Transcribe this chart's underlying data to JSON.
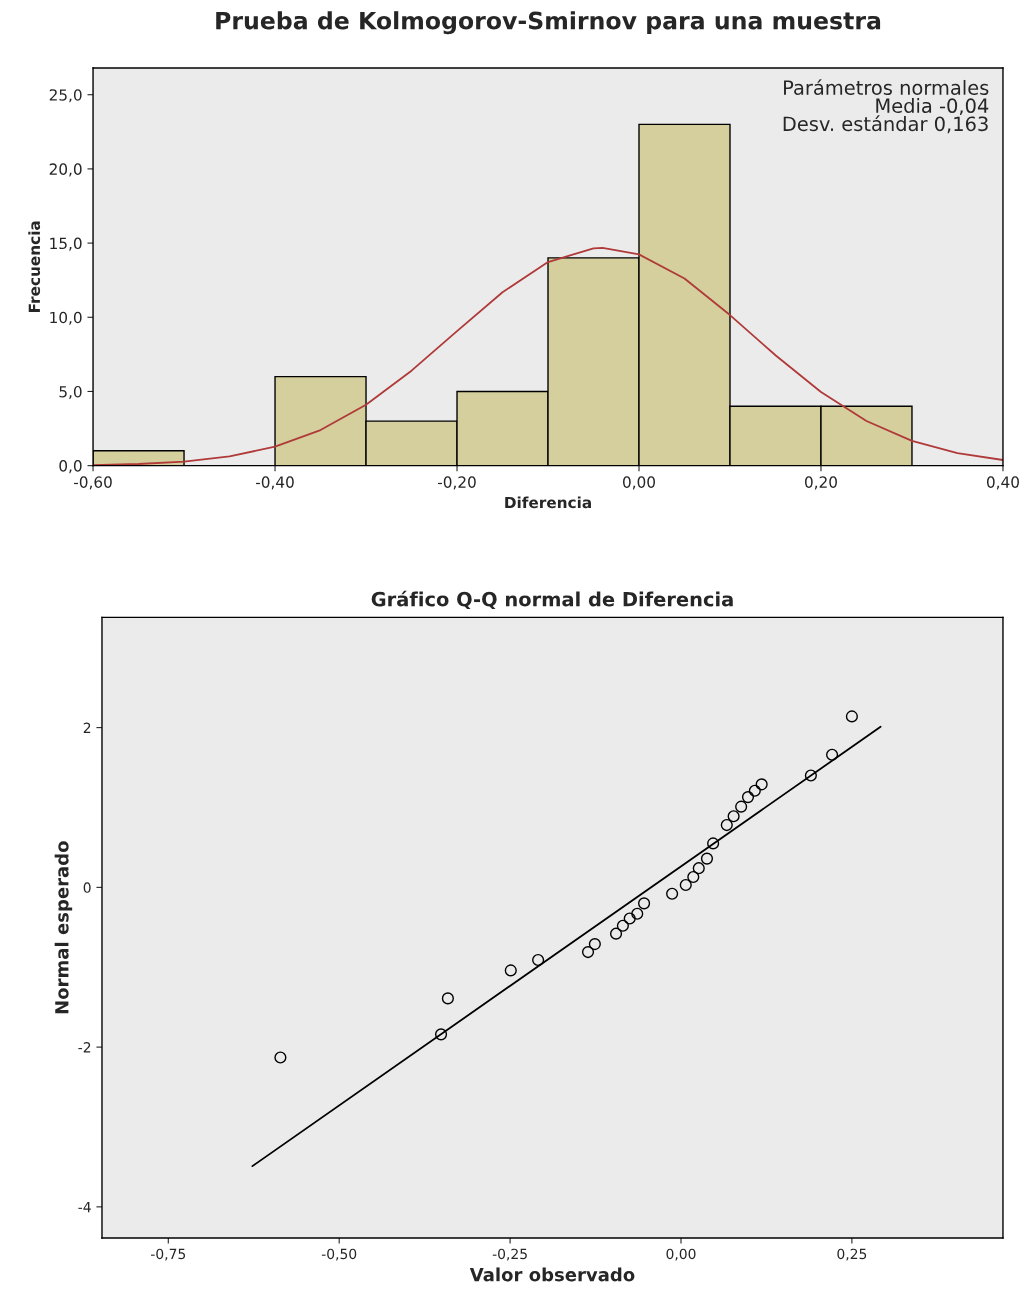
{
  "chart_data": [
    {
      "type": "histogram",
      "title": "Prueba de Kolmogorov-Smirnov para una muestra",
      "xlabel": "Diferencia",
      "ylabel": "Frecuencia",
      "bins": [
        -0.6,
        -0.5,
        -0.4,
        -0.3,
        -0.2,
        -0.1,
        0.0,
        0.1,
        0.2,
        0.3
      ],
      "series": [
        {
          "color": "#d4cf9c",
          "values": [
            1,
            0,
            6,
            3,
            5,
            14,
            23,
            4,
            4
          ]
        },
        {
          "type": "line",
          "color": "#b03a3a",
          "x": [
            -0.6,
            -0.55,
            -0.5,
            -0.45,
            -0.4,
            -0.35,
            -0.3,
            -0.25,
            -0.2,
            -0.15,
            -0.1,
            -0.05,
            -0.04,
            0.0,
            0.05,
            0.1,
            0.15,
            0.2,
            0.25,
            0.3,
            0.35,
            0.4
          ],
          "values": [
            0.04,
            0.11,
            0.27,
            0.62,
            1.28,
            2.4,
            4.11,
            6.4,
            9.07,
            11.69,
            13.72,
            14.65,
            14.68,
            14.24,
            12.61,
            10.15,
            7.44,
            4.96,
            3.01,
            1.67,
            0.84,
            0.38
          ]
        }
      ],
      "xlim": [
        -0.6,
        0.4
      ],
      "ylim": [
        0,
        26.8
      ],
      "xticks": [
        {
          "value": -0.6,
          "label": "-0,60"
        },
        {
          "value": -0.4,
          "label": "-0,40"
        },
        {
          "value": -0.2,
          "label": "-0,20"
        },
        {
          "value": 0.0,
          "label": "0,00"
        },
        {
          "value": 0.2,
          "label": "0,20"
        },
        {
          "value": 0.4,
          "label": "0,40"
        }
      ],
      "yticks": [
        {
          "value": 0,
          "label": "0,0"
        },
        {
          "value": 5,
          "label": "5,0"
        },
        {
          "value": 10,
          "label": "10,0"
        },
        {
          "value": 15,
          "label": "15,0"
        },
        {
          "value": 20,
          "label": "20,0"
        },
        {
          "value": 25,
          "label": "25,0"
        }
      ],
      "annotations": [
        "Parámetros normales\nMedia -0,04\nDesv. estándar 0,163"
      ],
      "grid": false,
      "legend": false
    },
    {
      "type": "scatter",
      "title": "Gráfico Q-Q normal de Diferencia",
      "xlabel": "Valor observado",
      "ylabel": "Normal esperado",
      "series": [
        {
          "marker": "circle",
          "color": "#000000",
          "x": [
            -0.586,
            -0.351,
            -0.341,
            -0.249,
            -0.209,
            -0.136,
            -0.126,
            -0.095,
            -0.085,
            -0.075,
            -0.064,
            -0.054,
            -0.013,
            0.007,
            0.018,
            0.026,
            0.038,
            0.047,
            0.067,
            0.077,
            0.088,
            0.098,
            0.108,
            0.118,
            0.19,
            0.221,
            0.25
          ],
          "values": [
            -2.13,
            -1.84,
            -1.39,
            -1.04,
            -0.91,
            -0.81,
            -0.71,
            -0.58,
            -0.48,
            -0.39,
            -0.33,
            -0.2,
            -0.08,
            0.03,
            0.13,
            0.24,
            0.36,
            0.55,
            0.78,
            0.89,
            1.01,
            1.13,
            1.21,
            1.29,
            1.4,
            1.66,
            2.14
          ]
        },
        {
          "type": "line",
          "color": "#000000",
          "x": [
            -0.627,
            0.292
          ],
          "values": [
            -3.49,
            2.01
          ]
        }
      ],
      "xlim": [
        -0.847,
        0.471
      ],
      "ylim": [
        -4.39,
        3.38
      ],
      "xticks": [
        {
          "value": -0.75,
          "label": "-0,75"
        },
        {
          "value": -0.5,
          "label": "-0,50"
        },
        {
          "value": -0.25,
          "label": "-0,25"
        },
        {
          "value": 0.0,
          "label": "0,00"
        },
        {
          "value": 0.25,
          "label": "0,25"
        }
      ],
      "yticks": [
        -4,
        -2,
        0,
        2
      ],
      "grid": false,
      "legend": false
    }
  ]
}
